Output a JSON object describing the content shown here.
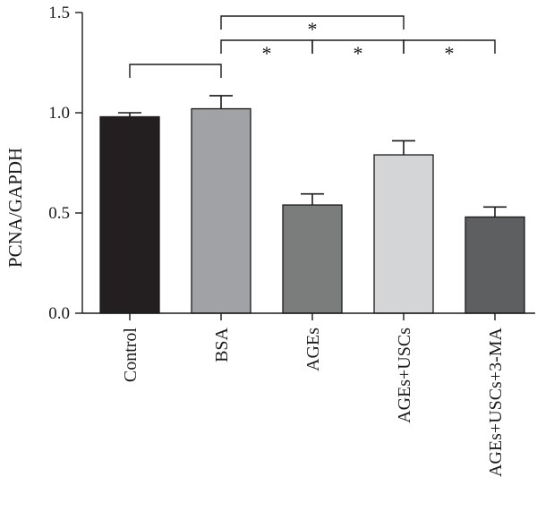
{
  "chart_data": {
    "type": "bar",
    "ylabel": "PCNA/GAPDH",
    "ylim": [
      0,
      1.5
    ],
    "yticks": [
      0.0,
      0.5,
      1.0,
      1.5
    ],
    "ytick_labels": [
      "0.0",
      "0.5",
      "1.0",
      "1.5"
    ],
    "categories": [
      "Control",
      "BSA",
      "AGEs",
      "AGEs+USCs",
      "AGEs+USCs+3-MA"
    ],
    "values": [
      0.98,
      1.02,
      0.54,
      0.79,
      0.48
    ],
    "errors": [
      0.02,
      0.065,
      0.055,
      0.07,
      0.05
    ],
    "colors": [
      "#231f20",
      "#a0a2a5",
      "#7b7d7c",
      "#d4d5d6",
      "#5e5f60"
    ],
    "significance": [
      {
        "from": 1,
        "to": 3,
        "label": "*"
      },
      {
        "from": 1,
        "to": 2,
        "label": "*"
      },
      {
        "from": 2,
        "to": 3,
        "label": "*"
      },
      {
        "from": 3,
        "to": 4,
        "label": "*"
      },
      {
        "from": 0,
        "to": 1,
        "label": ""
      }
    ]
  }
}
